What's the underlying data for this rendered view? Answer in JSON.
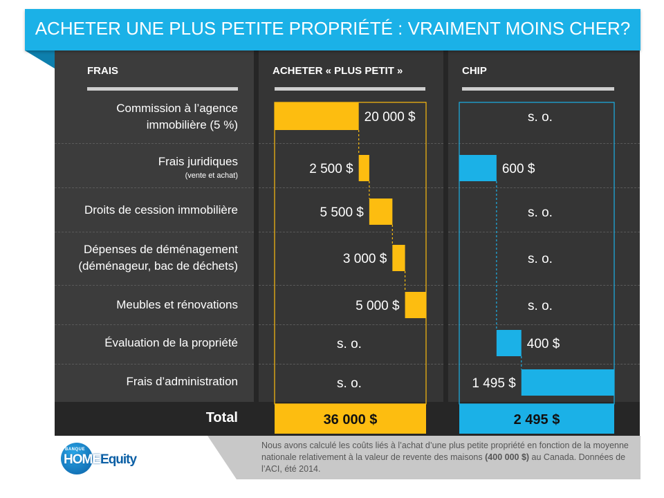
{
  "title": "ACHETER UNE PLUS PETITE PROPRIÉTÉ : VRAIMENT MOINS CHER?",
  "headers": {
    "fees": "FRAIS",
    "smaller": "ACHETER « PLUS PETIT »",
    "chip": "CHIP"
  },
  "rows": [
    {
      "label_line1": "Commission à l’agence",
      "label_line2": "immobilière (5 %)",
      "sub": ""
    },
    {
      "label_line1": "Frais juridiques",
      "label_line2": "",
      "sub": "(vente et achat)"
    },
    {
      "label_line1": "Droits de cession immobilière",
      "label_line2": "",
      "sub": ""
    },
    {
      "label_line1": "Dépenses de déménagement",
      "label_line2": "(déménageur,  bac de déchets)",
      "sub": ""
    },
    {
      "label_line1": "Meubles et rénovations",
      "label_line2": "",
      "sub": ""
    },
    {
      "label_line1": "Évaluation de la propriété",
      "label_line2": "",
      "sub": ""
    },
    {
      "label_line1": "Frais d’administration",
      "label_line2": "",
      "sub": ""
    }
  ],
  "total_label": "Total",
  "chart_data": {
    "type": "bar",
    "subtype": "waterfall",
    "categories": [
      "Commission à l’agence immobilière (5 %)",
      "Frais juridiques (vente et achat)",
      "Droits de cession immobilière",
      "Dépenses de déménagement (déménageur,  bac de déchets)",
      "Meubles et rénovations",
      "Évaluation de la propriété",
      "Frais d’administration"
    ],
    "series": [
      {
        "name": "ACHETER « PLUS PETIT »",
        "color": "#fdbd10",
        "values": [
          20000,
          2500,
          5500,
          3000,
          5000,
          null,
          null
        ],
        "labels": [
          "20 000 $",
          "2 500 $",
          "5 500 $",
          "3 000 $",
          "5 000 $",
          "s. o.",
          "s. o."
        ],
        "total": 36000,
        "total_label": "36 000 $"
      },
      {
        "name": "CHIP",
        "color": "#1bb1e7",
        "values": [
          null,
          600,
          null,
          null,
          null,
          400,
          1495
        ],
        "labels": [
          "s. o.",
          "600 $",
          "s. o.",
          "s. o.",
          "s. o.",
          "400 $",
          "1 495 $"
        ],
        "total": 2495,
        "total_label": "2 495 $"
      }
    ]
  },
  "footer": {
    "note_part1": "Nous avons calculé les coûts liés à l’achat d’une plus petite propriété en fonction de la moyenne  nationale relativement à la valeur de revente des maisons",
    "note_bold": "(400 000 $)",
    "note_part2": " au Canada. Données de l’ACI, été 2014."
  },
  "logo": {
    "bank": "BANQUE",
    "brand_home": "HOME",
    "brand_equity": "quity"
  },
  "colors": {
    "accent_blue": "#1bb1e7",
    "accent_yellow": "#fdbd10",
    "panel": "#3c3c3c",
    "dark": "#262626"
  }
}
